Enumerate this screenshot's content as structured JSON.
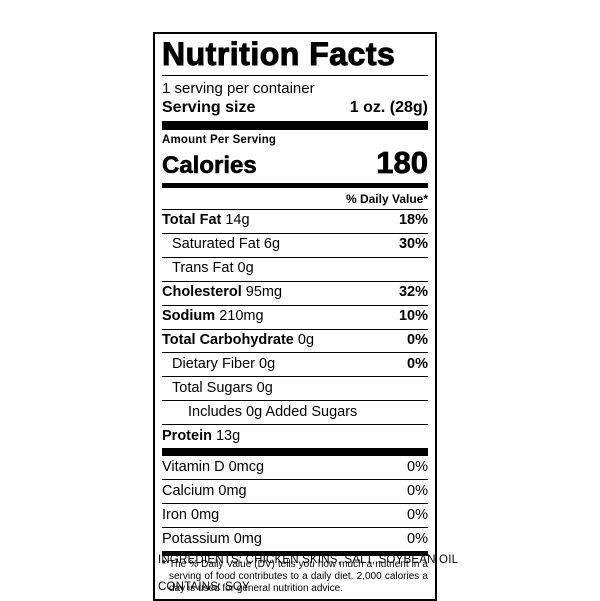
{
  "colors": {
    "text": "#000000",
    "background": "#ffffff"
  },
  "label": {
    "title": "Nutrition Facts",
    "servings_per_container": "1 serving per container",
    "serving_size_label": "Serving size",
    "serving_size_value": "1 oz. (28g)",
    "amount_per_serving": "Amount Per Serving",
    "calories_label": "Calories",
    "calories_value": "180",
    "daily_value_header": "% Daily Value*",
    "nutrients": [
      {
        "name": "Total Fat",
        "amount": "14g",
        "dv": "18%",
        "bold": true,
        "dv_bold": true,
        "indent": 0
      },
      {
        "name": "Saturated Fat",
        "amount": "6g",
        "dv": "30%",
        "bold": false,
        "dv_bold": true,
        "indent": 1
      },
      {
        "name": "Trans Fat",
        "amount": "0g",
        "dv": "",
        "bold": false,
        "dv_bold": false,
        "indent": 1
      },
      {
        "name": "Cholesterol",
        "amount": "95mg",
        "dv": "32%",
        "bold": true,
        "dv_bold": true,
        "indent": 0
      },
      {
        "name": "Sodium",
        "amount": "210mg",
        "dv": "10%",
        "bold": true,
        "dv_bold": true,
        "indent": 0
      },
      {
        "name": "Total Carbohydrate",
        "amount": "0g",
        "dv": "0%",
        "bold": true,
        "dv_bold": true,
        "indent": 0
      },
      {
        "name": "Dietary Fiber",
        "amount": "0g",
        "dv": "0%",
        "bold": false,
        "dv_bold": true,
        "indent": 1
      },
      {
        "name": "Total Sugars",
        "amount": "0g",
        "dv": "",
        "bold": false,
        "dv_bold": false,
        "indent": 1
      },
      {
        "name": "Includes 0g Added Sugars",
        "amount": "",
        "dv": "",
        "bold": false,
        "dv_bold": false,
        "indent": 2
      },
      {
        "name": "Protein",
        "amount": "13g",
        "dv": "",
        "bold": true,
        "dv_bold": false,
        "indent": 0
      }
    ],
    "vitamins": [
      {
        "name": "Vitamin D",
        "amount": "0mcg",
        "dv": "0%",
        "bold": false,
        "dv_bold": false,
        "indent": 0
      },
      {
        "name": "Calcium",
        "amount": "0mg",
        "dv": "0%",
        "bold": false,
        "dv_bold": false,
        "indent": 0
      },
      {
        "name": "Iron",
        "amount": "0mg",
        "dv": "0%",
        "bold": false,
        "dv_bold": false,
        "indent": 0
      },
      {
        "name": "Potassium",
        "amount": "0mg",
        "dv": "0%",
        "bold": false,
        "dv_bold": false,
        "indent": 0
      }
    ],
    "footnote_marker": "*",
    "footnote": "The % Daily Value (DV) tells you how much a nutrient in a serving of food contributes to a daily diet. 2,000 calories a day is used for general nutrition advice."
  },
  "ingredients_line": "INGREDIENTS: CHICKEN SKINS, SALT, SOYBEAN OIL",
  "contains_line": "CONTAINS: SOY"
}
